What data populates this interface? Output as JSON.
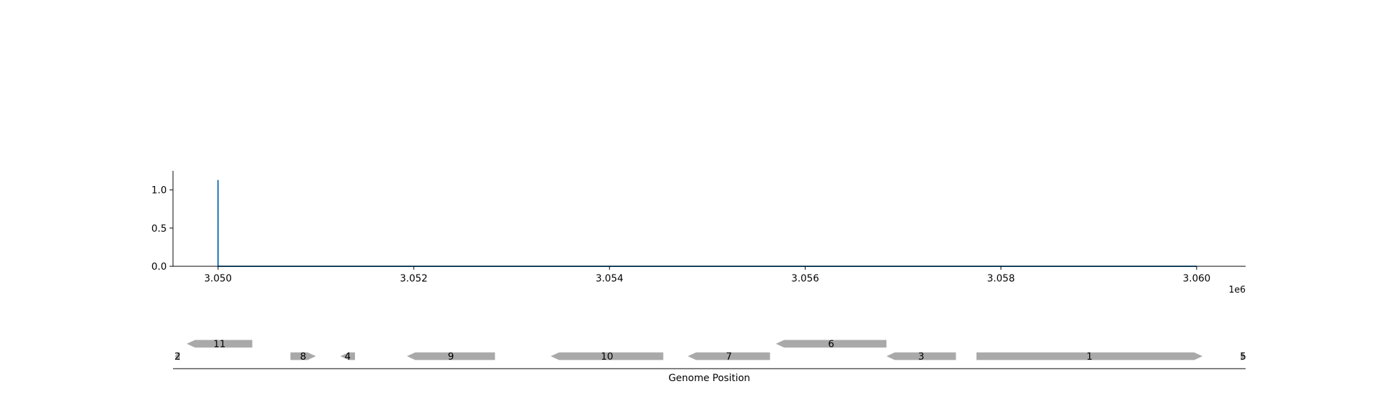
{
  "chart_data": [
    {
      "type": "line",
      "title": "",
      "xlabel": "",
      "ylabel": "",
      "x_offset_label": "1e6",
      "xlim": [
        3049540,
        3060500
      ],
      "ylim": [
        0,
        1.25
      ],
      "xticks": [
        3050000,
        3052000,
        3054000,
        3056000,
        3058000,
        3060000
      ],
      "xtick_labels": [
        "3.050",
        "3.052",
        "3.054",
        "3.056",
        "3.058",
        "3.060"
      ],
      "yticks": [
        0,
        0.5,
        1.0
      ],
      "ytick_labels": [
        "0.0",
        "0.5",
        "1.0"
      ],
      "grid": false,
      "series": [
        {
          "color": "#1f77b4",
          "x": [
            3050000,
            3050000,
            3050001,
            3060000
          ],
          "y": [
            0,
            1.13,
            0,
            0
          ]
        }
      ]
    },
    {
      "type": "gene_track",
      "xlabel": "Genome Position",
      "xlim": [
        3049540,
        3060500
      ],
      "feature_color": "#a9a9a9",
      "features": [
        {
          "label": "2",
          "start": 3049560,
          "end": 3049610,
          "strand": "-",
          "row": 0
        },
        {
          "label": "11",
          "start": 3049680,
          "end": 3050350,
          "strand": "-",
          "row": 1
        },
        {
          "label": "8",
          "start": 3050740,
          "end": 3051000,
          "strand": "+",
          "row": 0
        },
        {
          "label": "4",
          "start": 3051250,
          "end": 3051400,
          "strand": "-",
          "row": 0
        },
        {
          "label": "9",
          "start": 3051930,
          "end": 3052830,
          "strand": "-",
          "row": 0
        },
        {
          "label": "10",
          "start": 3053400,
          "end": 3054550,
          "strand": "-",
          "row": 0
        },
        {
          "label": "7",
          "start": 3054800,
          "end": 3055640,
          "strand": "-",
          "row": 0
        },
        {
          "label": "6",
          "start": 3055700,
          "end": 3056830,
          "strand": "-",
          "row": 1
        },
        {
          "label": "3",
          "start": 3056830,
          "end": 3057540,
          "strand": "-",
          "row": 0
        },
        {
          "label": "1",
          "start": 3057750,
          "end": 3060060,
          "strand": "+",
          "row": 0
        },
        {
          "label": "5",
          "start": 3060450,
          "end": 3060500,
          "strand": "+",
          "row": 0
        }
      ]
    }
  ]
}
